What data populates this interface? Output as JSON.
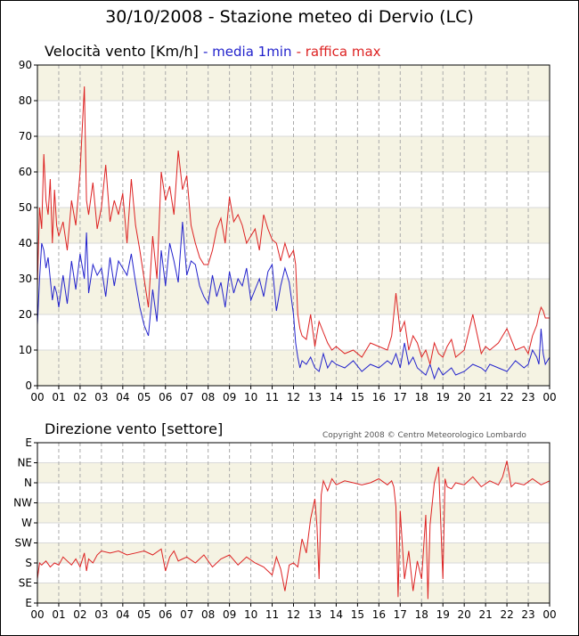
{
  "page_title": "30/10/2008 - Stazione meteo di Dervio (LC)",
  "copyright": "Copyright 2008 © Centro Meteorologico Lombardo",
  "colors": {
    "band": "#f5f3e3",
    "grid": "#aaaaaa",
    "blue": "#2222cc",
    "red": "#dd2222"
  },
  "chart_data": [
    {
      "type": "line",
      "title": "Velocità vento [Km/h]",
      "legend": [
        {
          "label": "- media 1min",
          "color": "#2222cc"
        },
        {
          "label": "- raffica max",
          "color": "#dd2222"
        }
      ],
      "x_ticks": [
        "00",
        "01",
        "02",
        "03",
        "04",
        "05",
        "06",
        "07",
        "08",
        "09",
        "10",
        "11",
        "12",
        "13",
        "14",
        "15",
        "16",
        "17",
        "18",
        "19",
        "20",
        "21",
        "22",
        "23",
        "00"
      ],
      "y_ticks": [
        "0",
        "10",
        "20",
        "30",
        "40",
        "50",
        "60",
        "70",
        "80",
        "90"
      ],
      "xlim": [
        0,
        24
      ],
      "ylim": [
        0,
        90
      ],
      "grid": true,
      "series": [
        {
          "name": "- media 1min",
          "color": "#2222cc",
          "x": [
            0,
            0.1,
            0.2,
            0.3,
            0.4,
            0.5,
            0.6,
            0.7,
            0.8,
            0.9,
            1.0,
            1.2,
            1.4,
            1.6,
            1.8,
            2.0,
            2.2,
            2.3,
            2.4,
            2.6,
            2.8,
            3.0,
            3.2,
            3.4,
            3.6,
            3.8,
            4.0,
            4.2,
            4.4,
            4.6,
            4.8,
            5.0,
            5.2,
            5.4,
            5.6,
            5.8,
            6.0,
            6.2,
            6.4,
            6.6,
            6.8,
            7.0,
            7.2,
            7.4,
            7.6,
            7.8,
            8.0,
            8.2,
            8.4,
            8.6,
            8.8,
            9.0,
            9.2,
            9.4,
            9.6,
            9.8,
            10.0,
            10.2,
            10.4,
            10.6,
            10.8,
            11.0,
            11.2,
            11.4,
            11.6,
            11.8,
            12.0,
            12.1,
            12.2,
            12.3,
            12.4,
            12.6,
            12.8,
            13.0,
            13.2,
            13.4,
            13.6,
            13.8,
            14.0,
            14.4,
            14.8,
            15.2,
            15.6,
            16.0,
            16.4,
            16.6,
            16.8,
            17.0,
            17.2,
            17.4,
            17.6,
            17.8,
            18.0,
            18.2,
            18.4,
            18.6,
            18.8,
            19.0,
            19.2,
            19.4,
            19.6,
            20.0,
            20.4,
            20.8,
            21.0,
            21.2,
            21.6,
            22.0,
            22.4,
            22.8,
            23.0,
            23.2,
            23.4,
            23.5,
            23.6,
            23.7,
            23.8,
            24.0
          ],
          "y": [
            17,
            30,
            40,
            38,
            33,
            36,
            30,
            24,
            28,
            26,
            22,
            31,
            23,
            35,
            27,
            37,
            30,
            43,
            26,
            34,
            31,
            33,
            25,
            36,
            28,
            35,
            33,
            31,
            37,
            29,
            22,
            17,
            14,
            27,
            18,
            38,
            28,
            40,
            35,
            29,
            46,
            31,
            35,
            34,
            28,
            25,
            23,
            31,
            25,
            29,
            22,
            32,
            26,
            30,
            28,
            33,
            24,
            27,
            30,
            25,
            32,
            34,
            21,
            28,
            33,
            29,
            20,
            12,
            8,
            5,
            7,
            6,
            8,
            5,
            4,
            9,
            5,
            7,
            6,
            5,
            7,
            4,
            6,
            5,
            7,
            6,
            9,
            5,
            12,
            6,
            8,
            5,
            4,
            3,
            6,
            2,
            5,
            3,
            4,
            5,
            3,
            4,
            6,
            5,
            4,
            6,
            5,
            4,
            7,
            5,
            6,
            10,
            8,
            6,
            16,
            9,
            6,
            8
          ]
        },
        {
          "name": "- raffica max",
          "color": "#dd2222",
          "x": [
            0,
            0.1,
            0.2,
            0.3,
            0.4,
            0.5,
            0.6,
            0.7,
            0.8,
            0.9,
            1.0,
            1.2,
            1.4,
            1.6,
            1.8,
            2.0,
            2.2,
            2.3,
            2.4,
            2.6,
            2.8,
            3.0,
            3.2,
            3.4,
            3.6,
            3.8,
            4.0,
            4.2,
            4.4,
            4.6,
            4.8,
            5.0,
            5.2,
            5.4,
            5.6,
            5.8,
            6.0,
            6.2,
            6.4,
            6.6,
            6.8,
            7.0,
            7.2,
            7.4,
            7.6,
            7.8,
            8.0,
            8.2,
            8.4,
            8.6,
            8.8,
            9.0,
            9.2,
            9.4,
            9.6,
            9.8,
            10.0,
            10.2,
            10.4,
            10.6,
            10.8,
            11.0,
            11.2,
            11.4,
            11.6,
            11.8,
            12.0,
            12.1,
            12.2,
            12.3,
            12.4,
            12.6,
            12.8,
            13.0,
            13.2,
            13.4,
            13.6,
            13.8,
            14.0,
            14.4,
            14.8,
            15.2,
            15.6,
            16.0,
            16.4,
            16.6,
            16.8,
            17.0,
            17.2,
            17.4,
            17.6,
            17.8,
            18.0,
            18.2,
            18.4,
            18.6,
            18.8,
            19.0,
            19.2,
            19.4,
            19.6,
            20.0,
            20.4,
            20.8,
            21.0,
            21.2,
            21.6,
            22.0,
            22.4,
            22.8,
            23.0,
            23.2,
            23.4,
            23.5,
            23.6,
            23.7,
            23.8,
            24.0
          ],
          "y": [
            28,
            50,
            44,
            65,
            52,
            48,
            58,
            40,
            55,
            45,
            42,
            46,
            38,
            52,
            45,
            60,
            84,
            52,
            48,
            57,
            44,
            50,
            62,
            46,
            52,
            48,
            54,
            40,
            58,
            45,
            38,
            30,
            22,
            42,
            30,
            60,
            52,
            56,
            48,
            66,
            55,
            59,
            45,
            40,
            36,
            34,
            34,
            38,
            44,
            47,
            40,
            53,
            46,
            48,
            45,
            40,
            42,
            44,
            38,
            48,
            44,
            41,
            40,
            35,
            40,
            36,
            38,
            34,
            20,
            16,
            14,
            13,
            20,
            11,
            18,
            15,
            12,
            10,
            11,
            9,
            10,
            8,
            12,
            11,
            10,
            14,
            26,
            15,
            18,
            10,
            14,
            12,
            8,
            10,
            6,
            12,
            9,
            8,
            11,
            13,
            8,
            10,
            20,
            9,
            11,
            10,
            12,
            16,
            10,
            11,
            9,
            14,
            17,
            20,
            22,
            21,
            19,
            19
          ]
        }
      ]
    },
    {
      "type": "line",
      "title": "Direzione vento [settore]",
      "x_ticks": [
        "00",
        "01",
        "02",
        "03",
        "04",
        "05",
        "06",
        "07",
        "08",
        "09",
        "10",
        "11",
        "12",
        "13",
        "14",
        "15",
        "16",
        "17",
        "18",
        "19",
        "20",
        "21",
        "22",
        "23",
        "00"
      ],
      "y_ticks": [
        "E",
        "SE",
        "S",
        "SW",
        "W",
        "NW",
        "N",
        "NE",
        "E"
      ],
      "xlim": [
        0,
        24
      ],
      "ylim": [
        0,
        8
      ],
      "grid": true,
      "series": [
        {
          "color": "#dd2222",
          "x": [
            0,
            0.1,
            0.2,
            0.4,
            0.6,
            0.8,
            1.0,
            1.2,
            1.4,
            1.6,
            1.8,
            2.0,
            2.2,
            2.3,
            2.4,
            2.6,
            2.8,
            3.0,
            3.4,
            3.8,
            4.2,
            4.6,
            5.0,
            5.4,
            5.8,
            6.0,
            6.2,
            6.4,
            6.6,
            6.8,
            7.0,
            7.4,
            7.8,
            8.2,
            8.6,
            9.0,
            9.4,
            9.8,
            10.2,
            10.6,
            11.0,
            11.2,
            11.4,
            11.6,
            11.8,
            12.0,
            12.2,
            12.4,
            12.6,
            12.8,
            13.0,
            13.1,
            13.2,
            13.3,
            13.4,
            13.6,
            13.8,
            14.0,
            14.4,
            14.8,
            15.2,
            15.6,
            16.0,
            16.4,
            16.6,
            16.7,
            16.8,
            16.9,
            17.0,
            17.2,
            17.4,
            17.6,
            17.8,
            18.0,
            18.2,
            18.3,
            18.4,
            18.6,
            18.8,
            19.0,
            19.1,
            19.2,
            19.4,
            19.6,
            20.0,
            20.4,
            20.8,
            21.2,
            21.6,
            21.8,
            22.0,
            22.2,
            22.4,
            22.8,
            23.2,
            23.6,
            24.0
          ],
          "y": [
            1.2,
            2,
            1.9,
            2.1,
            1.8,
            2.0,
            1.9,
            2.3,
            2.1,
            1.9,
            2.2,
            1.8,
            2.5,
            1.6,
            2.2,
            2.0,
            2.4,
            2.6,
            2.5,
            2.6,
            2.4,
            2.5,
            2.6,
            2.4,
            2.7,
            1.6,
            2.3,
            2.6,
            2.1,
            2.2,
            2.3,
            2.0,
            2.4,
            1.8,
            2.2,
            2.4,
            1.9,
            2.3,
            2.0,
            1.8,
            1.4,
            2.3,
            1.7,
            0.6,
            1.9,
            2.0,
            1.8,
            3.2,
            2.5,
            4.2,
            5.2,
            3.8,
            1.2,
            5.4,
            6.1,
            5.6,
            6.2,
            5.9,
            6.1,
            6.0,
            5.9,
            6.0,
            6.2,
            5.9,
            6.1,
            5.8,
            4.8,
            0.3,
            4.6,
            1.2,
            2.6,
            0.6,
            2.1,
            1.2,
            4.4,
            0.2,
            3.9,
            6.0,
            6.8,
            1.2,
            6.2,
            5.8,
            5.7,
            6.0,
            5.9,
            6.3,
            5.8,
            6.1,
            5.9,
            6.3,
            7.1,
            5.8,
            6.0,
            5.9,
            6.2,
            5.9,
            6.1
          ]
        }
      ]
    }
  ]
}
